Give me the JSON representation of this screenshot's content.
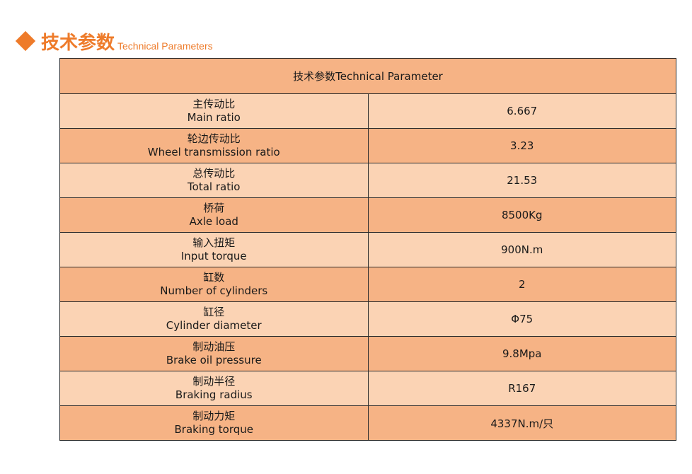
{
  "heading": {
    "title_cn": "技术参数",
    "title_en": "Technical Parameters",
    "accent_color": "#ee7b2a",
    "icon": "diamond-icon"
  },
  "table": {
    "header": "技术参数Technical Parameter",
    "rows": [
      {
        "label_cn": "主传动比",
        "label_en": "Main ratio",
        "value": "6.667"
      },
      {
        "label_cn": "轮边传动比",
        "label_en": "Wheel transmission ratio",
        "value": "3.23"
      },
      {
        "label_cn": "总传动比",
        "label_en": "Total ratio",
        "value": "21.53"
      },
      {
        "label_cn": "桥荷",
        "label_en": "Axle load",
        "value": "8500Kg"
      },
      {
        "label_cn": "输入扭矩",
        "label_en": "Input torque",
        "value": "900N.m"
      },
      {
        "label_cn": "缸数",
        "label_en": "Number of cylinders",
        "value": "2"
      },
      {
        "label_cn": "缸径",
        "label_en": "Cylinder diameter",
        "value": "Φ75"
      },
      {
        "label_cn": "制动油压",
        "label_en": "Brake oil pressure",
        "value": "9.8Mpa"
      },
      {
        "label_cn": "制动半径",
        "label_en": "Braking radius",
        "value": "R167"
      },
      {
        "label_cn": "制动力矩",
        "label_en": "Braking torque",
        "value": "4337N.m/只"
      }
    ],
    "colors": {
      "light": "#fbd3b4",
      "dark": "#f6b385",
      "border": "#2b2b2b"
    }
  }
}
